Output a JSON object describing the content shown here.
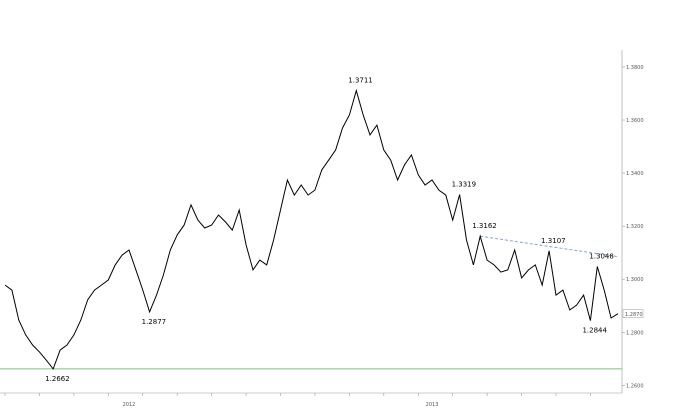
{
  "chart_data": {
    "type": "line",
    "color": "#000000",
    "values": [
      1.2978,
      1.2959,
      1.2846,
      1.279,
      1.2752,
      1.2726,
      1.2695,
      1.2662,
      1.2733,
      1.2752,
      1.279,
      1.2846,
      1.2922,
      1.2959,
      1.2978,
      1.2997,
      1.3054,
      1.3091,
      1.311,
      1.3035,
      1.2959,
      1.2877,
      1.294,
      1.3016,
      1.311,
      1.3167,
      1.3204,
      1.328,
      1.3223,
      1.3193,
      1.3204,
      1.3242,
      1.3216,
      1.3185,
      1.3261,
      1.3129,
      1.3035,
      1.3072,
      1.3054,
      1.3148,
      1.3261,
      1.3374,
      1.3317,
      1.3355,
      1.3317,
      1.3336,
      1.3412,
      1.3449,
      1.3487,
      1.357,
      1.3619,
      1.3711,
      1.3619,
      1.3544,
      1.3581,
      1.3487,
      1.3449,
      1.3374,
      1.3431,
      1.3468,
      1.3393,
      1.3355,
      1.3374,
      1.3336,
      1.3317,
      1.3223,
      1.3319,
      1.3148,
      1.3054,
      1.3162,
      1.3072,
      1.3054,
      1.3027,
      1.3035,
      1.311,
      1.3005,
      1.3035,
      1.3054,
      1.2978,
      1.3107,
      1.294,
      1.2959,
      1.2884,
      1.2903,
      1.294,
      1.2844,
      1.3048,
      1.2959,
      1.2854,
      1.287
    ],
    "value_labels": [
      null,
      null,
      null,
      null,
      null,
      null,
      null,
      "1.2662",
      null,
      null,
      null,
      null,
      null,
      null,
      null,
      null,
      null,
      null,
      null,
      null,
      null,
      "1.2877",
      null,
      null,
      null,
      null,
      null,
      null,
      null,
      null,
      null,
      null,
      null,
      null,
      null,
      null,
      null,
      null,
      null,
      null,
      null,
      null,
      null,
      null,
      null,
      null,
      null,
      null,
      null,
      null,
      null,
      "1.3711",
      null,
      null,
      null,
      null,
      null,
      null,
      null,
      null,
      null,
      null,
      null,
      null,
      null,
      null,
      "1.3319",
      null,
      null,
      "1.3162",
      null,
      null,
      null,
      null,
      null,
      null,
      null,
      null,
      null,
      "1.3107",
      null,
      null,
      null,
      null,
      null,
      "1.2844",
      "1.3048",
      null,
      null,
      "1.2870"
    ],
    "ylim": [
      1.2575,
      1.3845
    ],
    "yticks": [
      {
        "value": 1.26,
        "label": "1.2600"
      },
      {
        "value": 1.28,
        "label": "1.2800"
      },
      {
        "value": 1.3,
        "label": "1.3000"
      },
      {
        "value": 1.32,
        "label": "1.3200"
      },
      {
        "value": 1.34,
        "label": "1.3400"
      },
      {
        "value": 1.36,
        "label": "1.3600"
      },
      {
        "value": 1.38,
        "label": "1.3800"
      }
    ],
    "support_line": {
      "value": 1.2662,
      "color": "#7cbf7c"
    },
    "trendline": {
      "x": [
        69,
        89
      ],
      "values": [
        1.3162,
        1.3085
      ],
      "color": "#8aa4cc"
    },
    "year_labels": [
      {
        "text": "2012",
        "index": 18
      },
      {
        "text": "2013",
        "index": 62
      }
    ]
  }
}
